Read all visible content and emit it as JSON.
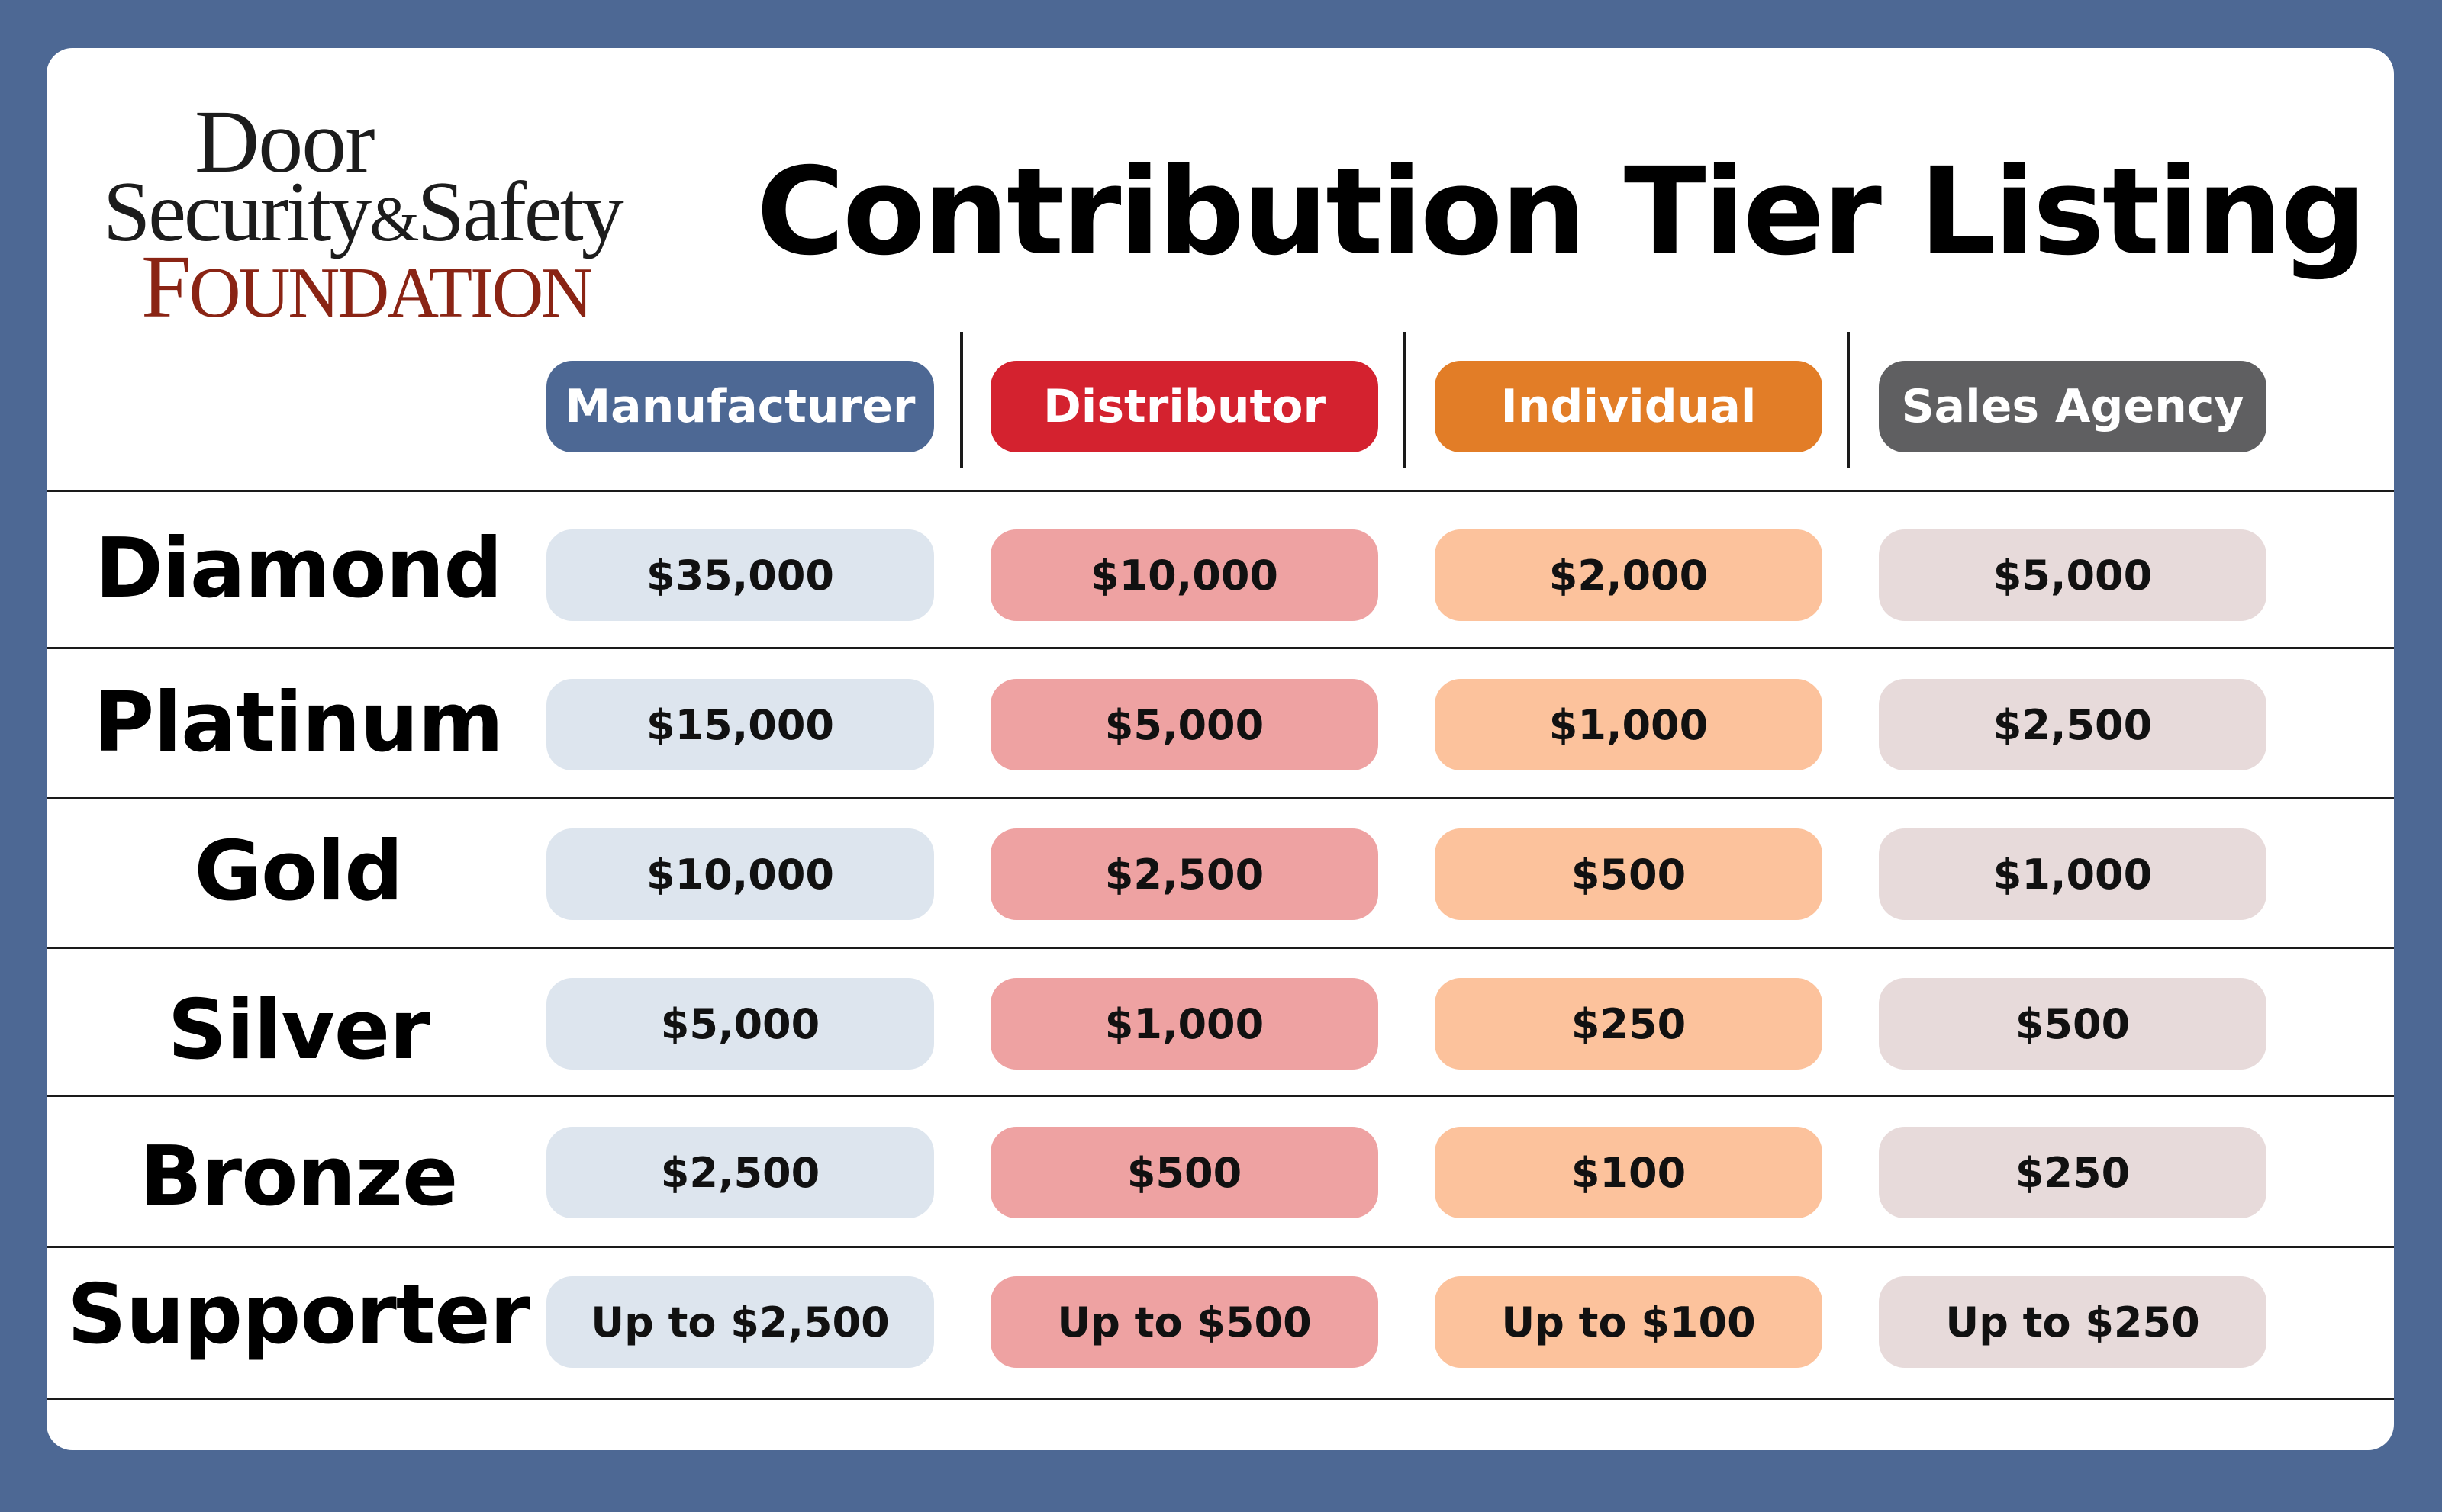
{
  "logo": {
    "line1": "Door",
    "line2a": "Security",
    "line2amp": "&",
    "line2b": "Safety",
    "line3a": "F",
    "line3b": "OUNDATION"
  },
  "title": "Contribution Tier Listing",
  "colors": {
    "page_background": "#4d6894",
    "manufacturer_header": "#4d6894",
    "distributor_header": "#d4222f",
    "individual_header": "#e27d27",
    "sales_agency_header": "#5f5f61",
    "manufacturer_cell": "#dde5ee",
    "distributor_cell": "#eea2a2",
    "individual_cell": "#fcc29c",
    "sales_agency_cell": "#e7dada",
    "logo_red": "#8a2414"
  },
  "columns": [
    "Manufacturer",
    "Distributor",
    "Individual",
    "Sales Agency"
  ],
  "rows": [
    {
      "tier": "Diamond",
      "values": [
        "$35,000",
        "$10,000",
        "$2,000",
        "$5,000"
      ]
    },
    {
      "tier": "Platinum",
      "values": [
        "$15,000",
        "$5,000",
        "$1,000",
        "$2,500"
      ]
    },
    {
      "tier": "Gold",
      "values": [
        "$10,000",
        "$2,500",
        "$500",
        "$1,000"
      ]
    },
    {
      "tier": "Silver",
      "values": [
        "$5,000",
        "$1,000",
        "$250",
        "$500"
      ]
    },
    {
      "tier": "Bronze",
      "values": [
        "$2,500",
        "$500",
        "$100",
        "$250"
      ]
    },
    {
      "tier": "Supporter",
      "values": [
        "Up to $2,500",
        "Up to $500",
        "Up to $100",
        "Up to $250"
      ]
    }
  ]
}
